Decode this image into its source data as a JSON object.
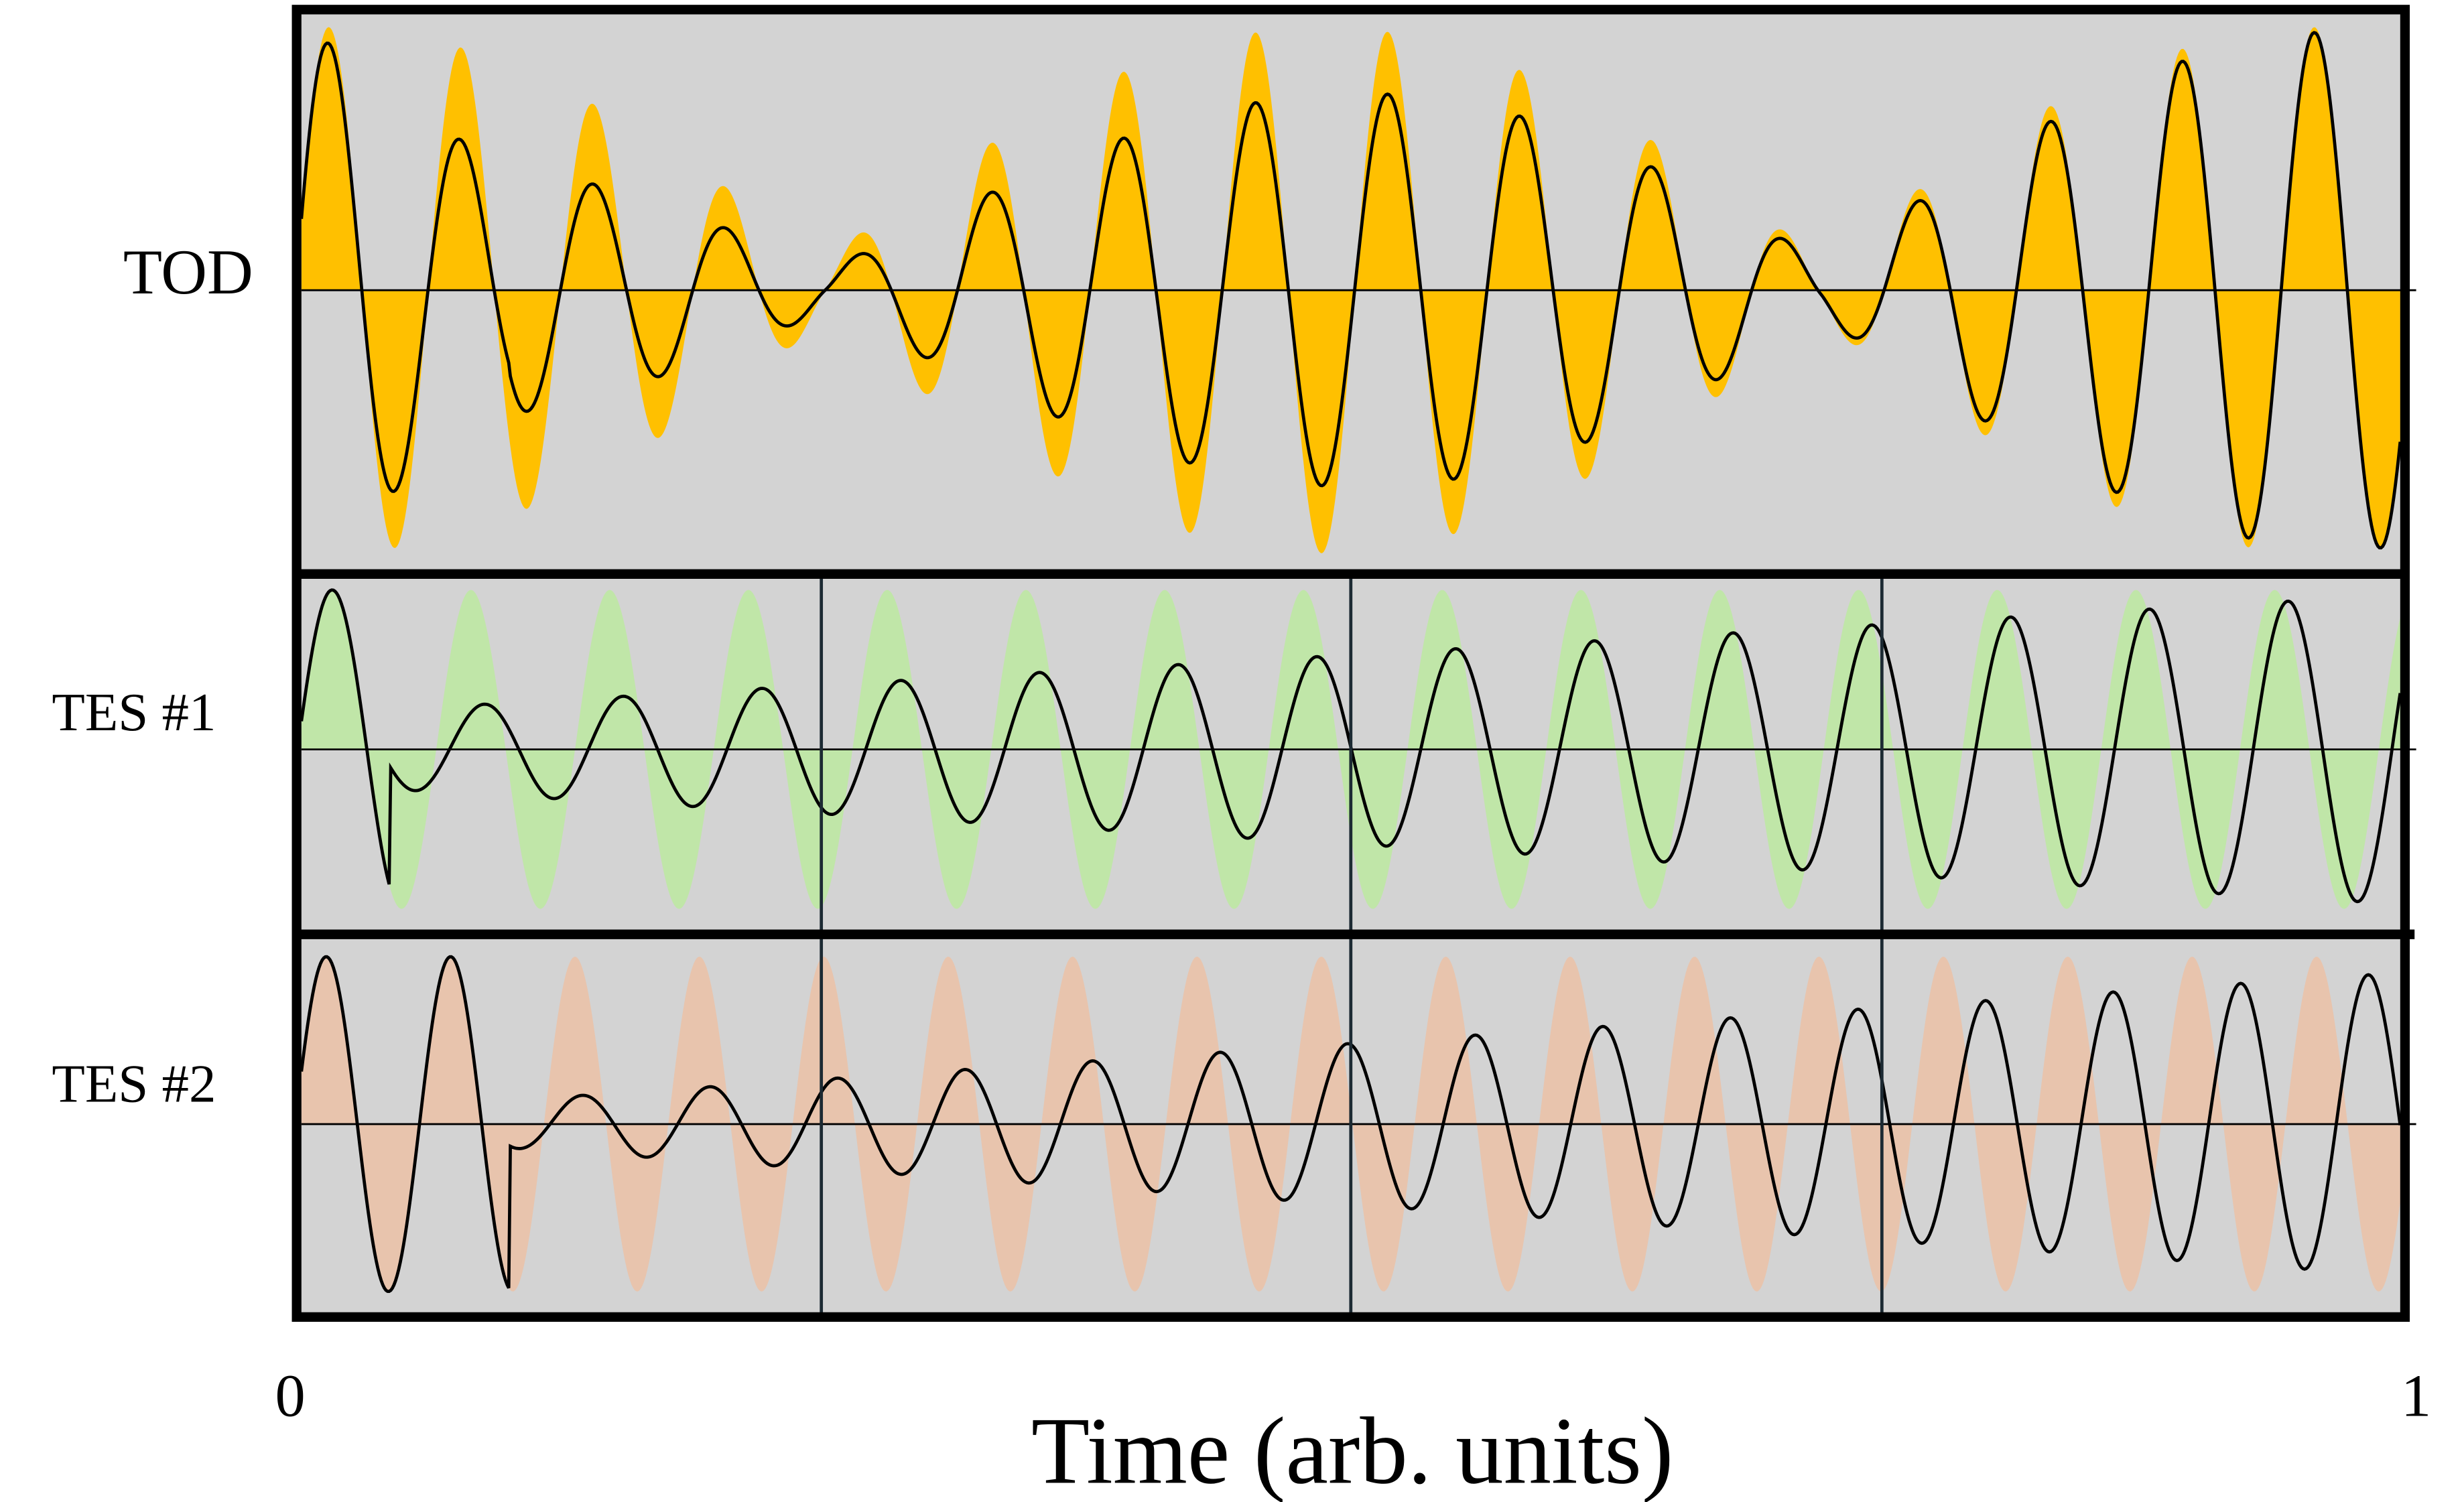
{
  "panels": [
    {
      "label": "TOD"
    },
    {
      "label": "TES #1"
    },
    {
      "label": "TES #2"
    }
  ],
  "x_axis": {
    "title": "Time (arb. units)",
    "ticks": [
      "0",
      "1"
    ]
  }
}
